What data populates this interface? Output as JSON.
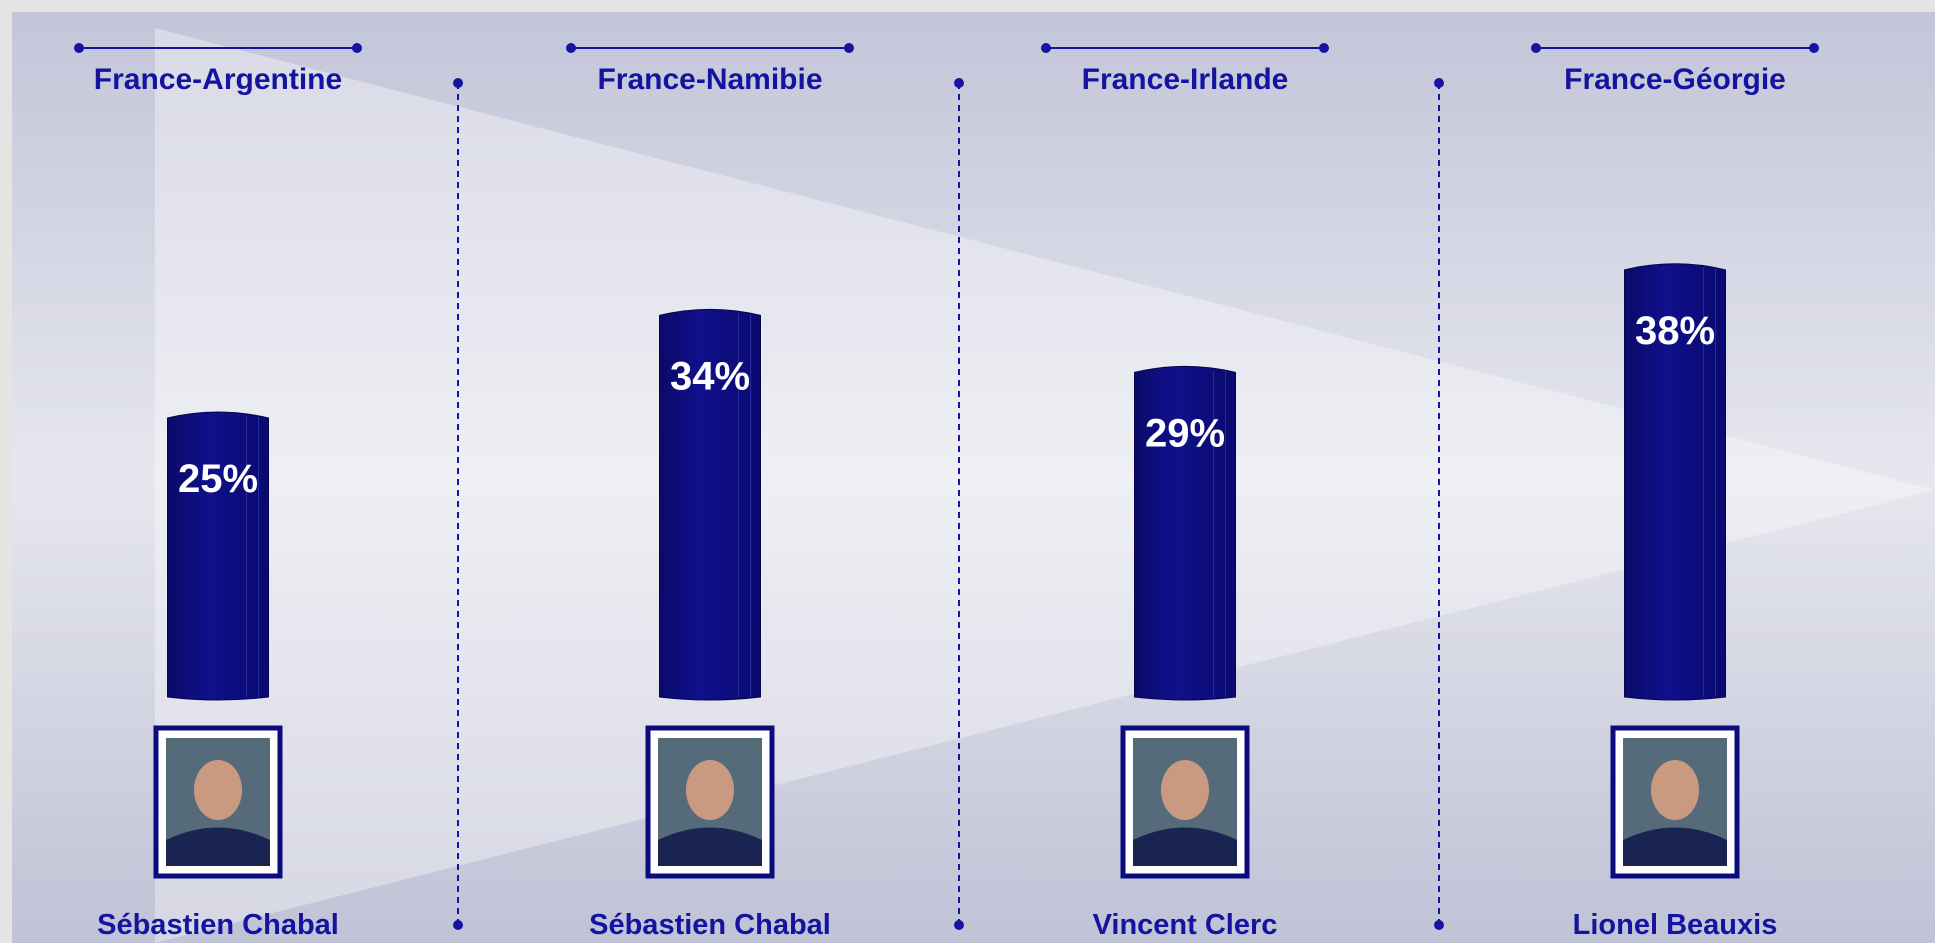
{
  "chart_data": {
    "type": "bar",
    "categories": [
      "France-Argentine",
      "France-Namibie",
      "France-Irlande",
      "France-Géorgie"
    ],
    "values": [
      25,
      34,
      29,
      38
    ],
    "value_labels": [
      "25%",
      "34%",
      "29%",
      "38%"
    ],
    "players": [
      "Sébastien Chabal",
      "Sébastien Chabal",
      "Vincent Clerc",
      "Lionel Beauxis"
    ],
    "color": "#0b0b7e"
  }
}
